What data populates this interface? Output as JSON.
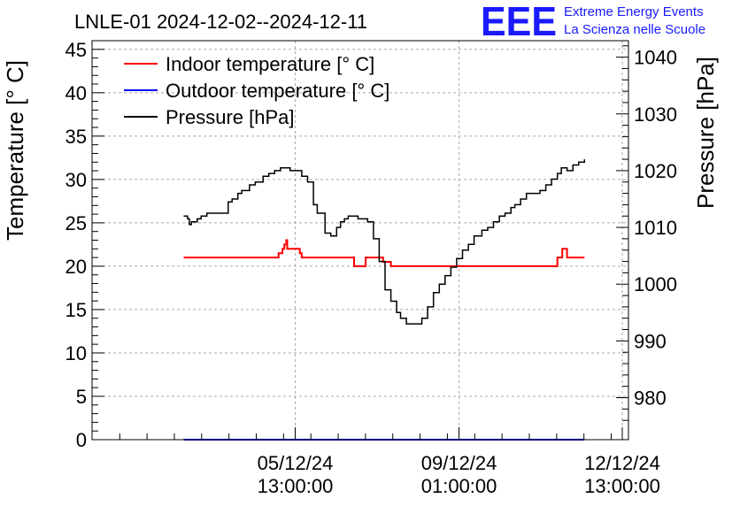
{
  "chart_data": {
    "type": "line",
    "title": "LNLE-01 2024-12-02--2024-12-11",
    "ylabel_left": "Temperature [° C]",
    "ylabel_right": "Pressure [hPa]",
    "ylim_left": [
      0,
      46
    ],
    "ylim_right": [
      972.6,
      1042.9
    ],
    "grid": true,
    "legend_position": "top-left",
    "y_ticks_left": [
      "0",
      "5",
      "10",
      "15",
      "20",
      "25",
      "30",
      "35",
      "40",
      "45"
    ],
    "y_ticks_right": [
      "980",
      "990",
      "1000",
      "1010",
      "1020",
      "1030",
      "1040"
    ],
    "x_ticks": [
      {
        "line1": "05/12/24",
        "line2": "13:00:00",
        "hours": 60.6
      },
      {
        "line1": "09/12/24",
        "line2": "01:00:00",
        "hours": 145.2
      },
      {
        "line1": "12/12/24",
        "line2": "13:00:00",
        "hours": 229.5
      }
    ],
    "x_range_hours": [
      -44.3,
      232.7
    ],
    "series": [
      {
        "name": "Indoor temperature [° C]",
        "color": "#ff0000",
        "axis": "left",
        "x": [
          3,
          51,
          52,
          54,
          55,
          56,
          56.5,
          59,
          61,
          63,
          64,
          90,
          91,
          96,
          97,
          105,
          106,
          110,
          111,
          195,
          196,
          197.5,
          198.5,
          200,
          201,
          210
        ],
        "values": [
          21,
          21,
          21.5,
          22,
          22.5,
          23,
          22,
          22,
          22,
          21.5,
          21,
          21,
          20,
          20,
          21,
          21,
          20.5,
          20,
          20,
          20,
          21,
          21,
          22,
          22,
          21,
          21
        ]
      },
      {
        "name": "Outdoor temperature [° C]",
        "color": "#0000ff",
        "axis": "left",
        "x": [
          3,
          210
        ],
        "values": [
          0,
          0
        ]
      },
      {
        "name": "Pressure [hPa]",
        "color": "#000000",
        "axis": "right",
        "x": [
          3,
          5,
          6,
          7,
          10,
          12,
          15,
          22,
          26,
          28,
          31,
          33,
          37,
          40,
          44,
          47,
          50,
          53,
          56,
          58,
          61,
          64,
          67,
          70,
          72,
          76,
          79,
          82,
          84,
          86,
          88,
          90,
          93,
          95,
          98,
          101,
          104,
          107,
          110,
          113,
          115,
          118,
          120,
          123,
          126,
          129,
          132,
          135,
          138,
          141,
          144,
          147,
          150,
          153,
          157,
          160,
          163,
          166,
          169,
          172,
          174,
          177,
          180,
          184,
          187,
          190,
          193,
          196,
          198,
          201,
          204,
          207,
          210
        ],
        "values": [
          1012,
          1011.5,
          1010.5,
          1011,
          1011.5,
          1012,
          1012.5,
          1012.5,
          1014.5,
          1015,
          1016,
          1016.5,
          1017.5,
          1018,
          1019,
          1019.5,
          1020,
          1020.5,
          1020.5,
          1020,
          1020,
          1019,
          1018,
          1014,
          1012.5,
          1009,
          1008.5,
          1010,
          1011,
          1011.5,
          1012,
          1012,
          1011.5,
          1011.5,
          1011,
          1008,
          1004,
          999,
          997,
          995,
          994,
          993,
          993,
          993,
          994,
          996,
          998.5,
          1000,
          1001.5,
          1003,
          1004.5,
          1006,
          1007,
          1008.5,
          1009.5,
          1010,
          1011,
          1012,
          1012.5,
          1013.5,
          1014,
          1015,
          1016,
          1016,
          1016.5,
          1017.5,
          1018.5,
          1019.5,
          1020.5,
          1020,
          1021,
          1021.5,
          1022
        ]
      }
    ]
  },
  "logo": {
    "letters": "EEE",
    "line1": "Extreme Energy Events",
    "line2": "La Scienza nelle Scuole",
    "color": "#1a1aff"
  }
}
